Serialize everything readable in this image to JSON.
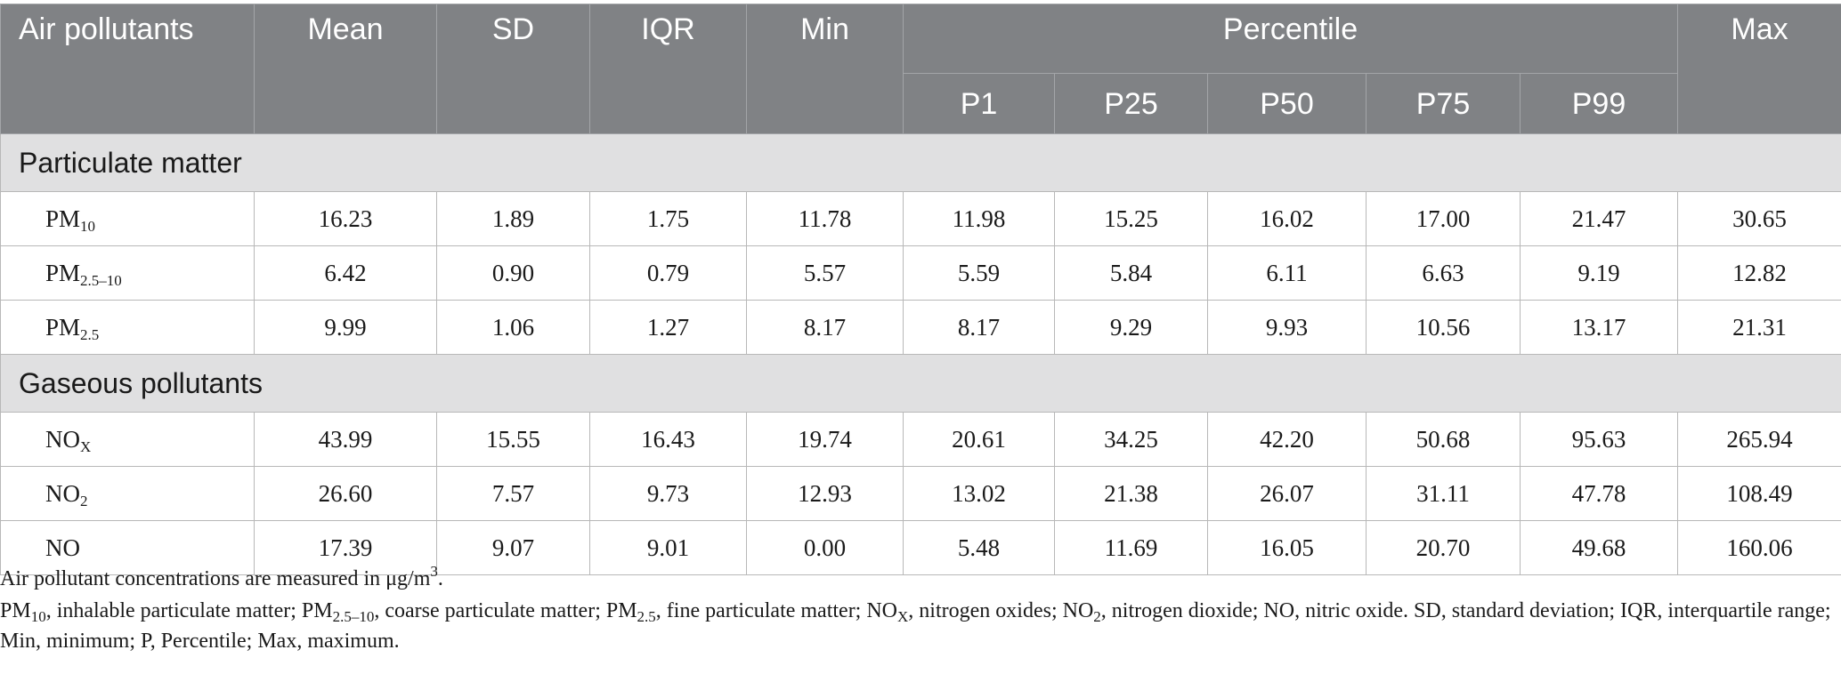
{
  "table": {
    "header": {
      "air_pollutants": "Air pollutants",
      "mean": "Mean",
      "sd": "SD",
      "iqr": "IQR",
      "min": "Min",
      "percentile": "Percentile",
      "max": "Max",
      "p1": "P1",
      "p25": "P25",
      "p50": "P50",
      "p75": "P75",
      "p99": "P99"
    },
    "sections": [
      {
        "title": "Particulate matter",
        "rows": [
          {
            "name": "PM",
            "sub": "10",
            "values": [
              "16.23",
              "1.89",
              "1.75",
              "11.78",
              "11.98",
              "15.25",
              "16.02",
              "17.00",
              "21.47",
              "30.65"
            ]
          },
          {
            "name": "PM",
            "sub": "2.5–10",
            "values": [
              "6.42",
              "0.90",
              "0.79",
              "5.57",
              "5.59",
              "5.84",
              "6.11",
              "6.63",
              "9.19",
              "12.82"
            ]
          },
          {
            "name": "PM",
            "sub": "2.5",
            "values": [
              "9.99",
              "1.06",
              "1.27",
              "8.17",
              "8.17",
              "9.29",
              "9.93",
              "10.56",
              "13.17",
              "21.31"
            ]
          }
        ]
      },
      {
        "title": "Gaseous pollutants",
        "rows": [
          {
            "name": "NO",
            "sub": "X",
            "values": [
              "43.99",
              "15.55",
              "16.43",
              "19.74",
              "20.61",
              "34.25",
              "42.20",
              "50.68",
              "95.63",
              "265.94"
            ]
          },
          {
            "name": "NO",
            "sub": "2",
            "values": [
              "26.60",
              "7.57",
              "9.73",
              "12.93",
              "13.02",
              "21.38",
              "26.07",
              "31.11",
              "47.78",
              "108.49"
            ]
          },
          {
            "name": "NO",
            "sub": "",
            "values": [
              "17.39",
              "9.07",
              "9.01",
              "0.00",
              "5.48",
              "11.69",
              "16.05",
              "20.70",
              "49.68",
              "160.06"
            ]
          }
        ]
      }
    ]
  },
  "notes": {
    "line1_main": "Air pollutant concentrations are measured in μg/m",
    "line1_sup": "3",
    "line1_end": ".",
    "abbrev": [
      {
        "t": "PM"
      },
      {
        "s": "10"
      },
      {
        "t": ", inhalable particulate matter; PM"
      },
      {
        "s": "2.5–10"
      },
      {
        "t": ", coarse particulate matter; PM"
      },
      {
        "s": "2.5"
      },
      {
        "t": ", fine particulate matter; NO"
      },
      {
        "s": "X"
      },
      {
        "t": ", nitrogen oxides; NO"
      },
      {
        "s": "2"
      },
      {
        "t": ", nitrogen dioxide; NO, nitric oxide. SD, standard deviation; IQR, interquartile range; Min, minimum; P, Percentile; Max, maximum."
      }
    ]
  }
}
